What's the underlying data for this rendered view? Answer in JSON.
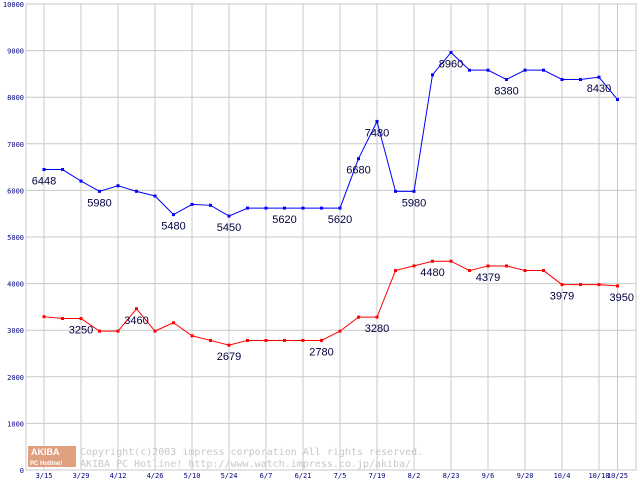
{
  "chart_data": {
    "type": "line",
    "title": "",
    "xlabel": "",
    "ylabel": "",
    "ylim": [
      0,
      10000
    ],
    "y_ticks": [
      "0",
      "1000",
      "2000",
      "3000",
      "4000",
      "5000",
      "6000",
      "7000",
      "8000",
      "9000",
      "10000"
    ],
    "x_tick_labels": [
      "3/15",
      "3/29",
      "4/12",
      "4/26",
      "5/10",
      "5/24",
      "6/7",
      "6/21",
      "7/5",
      "7/19",
      "8/2",
      "8/23",
      "9/6",
      "9/20",
      "10/4",
      "10/18",
      "10/25"
    ],
    "x_tick_index": [
      0,
      2,
      4,
      6,
      8,
      10,
      12,
      14,
      16,
      18,
      20,
      22,
      24,
      26,
      28,
      30,
      31
    ],
    "grid": true,
    "legend": "none",
    "series": [
      {
        "color": "#0000ff",
        "values": [
          6448,
          6448,
          6200,
          5980,
          6100,
          5980,
          5880,
          5480,
          5700,
          5680,
          5450,
          5620,
          5620,
          5620,
          5620,
          5620,
          5620,
          6680,
          7480,
          5980,
          5980,
          8480,
          8960,
          8580,
          8580,
          8380,
          8580,
          8580,
          8380,
          8380,
          8430,
          7950
        ],
        "labels": [
          {
            "index": 0,
            "text": "6448"
          },
          {
            "index": 3,
            "text": "5980"
          },
          {
            "index": 7,
            "text": "5480"
          },
          {
            "index": 10,
            "text": "5450"
          },
          {
            "index": 13,
            "text": "5620"
          },
          {
            "index": 16,
            "text": "5620"
          },
          {
            "index": 17,
            "text": "6680"
          },
          {
            "index": 18,
            "text": "7480"
          },
          {
            "index": 20,
            "text": "5980"
          },
          {
            "index": 22,
            "text": "8960"
          },
          {
            "index": 25,
            "text": "8380"
          },
          {
            "index": 30,
            "text": "8430"
          }
        ]
      },
      {
        "color": "#ff0000",
        "values": [
          3290,
          3250,
          3250,
          2980,
          2980,
          3460,
          2980,
          3160,
          2880,
          2780,
          2679,
          2780,
          2780,
          2780,
          2780,
          2780,
          2980,
          3280,
          3280,
          4280,
          4380,
          4480,
          4480,
          4280,
          4379,
          4379,
          4280,
          4280,
          3979,
          3979,
          3979,
          3950
        ],
        "labels": [
          {
            "index": 2,
            "text": "3250"
          },
          {
            "index": 5,
            "text": "3460"
          },
          {
            "index": 10,
            "text": "2679"
          },
          {
            "index": 15,
            "text": "2780"
          },
          {
            "index": 18,
            "text": "3280"
          },
          {
            "index": 21,
            "text": "4480"
          },
          {
            "index": 24,
            "text": "4379"
          },
          {
            "index": 28,
            "text": "3979"
          },
          {
            "index": 31,
            "text": "3950"
          }
        ]
      }
    ]
  },
  "watermark": {
    "logo_top": "AKIBA",
    "logo_bottom": "PC Hotline!",
    "line1": "Copyright(c)2003 impress corporation All rights reserved.",
    "line2": "AKIBA PC Hotline!  http://www.watch.impress.co.jp/akiba/"
  }
}
